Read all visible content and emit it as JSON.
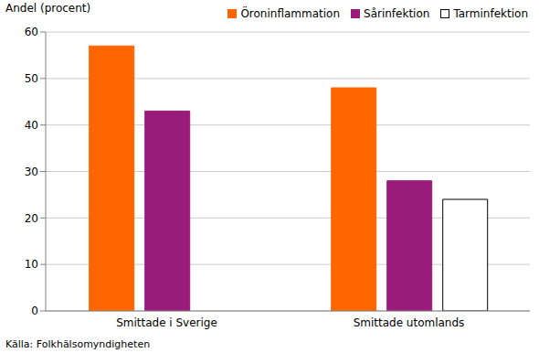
{
  "chart_data": {
    "type": "bar",
    "ylabel": "Andel (procent)",
    "categories": [
      "Smittade i Sverige",
      "Smittade utomlands"
    ],
    "series": [
      {
        "name": "Öroninflammation",
        "color": "#ff6600",
        "values": [
          57,
          48
        ]
      },
      {
        "name": "Sårinfektion",
        "color": "#991c7b",
        "values": [
          43,
          28
        ]
      },
      {
        "name": "Tarminfektion",
        "color": "#ffffff",
        "values": [
          null,
          24
        ]
      }
    ],
    "ylim": [
      0,
      60
    ],
    "yticks": [
      0,
      10,
      20,
      30,
      40,
      50,
      60
    ],
    "grid": true,
    "legend": "upper right",
    "annotations": [
      "Källa: Folkhälsomyndigheten"
    ]
  }
}
